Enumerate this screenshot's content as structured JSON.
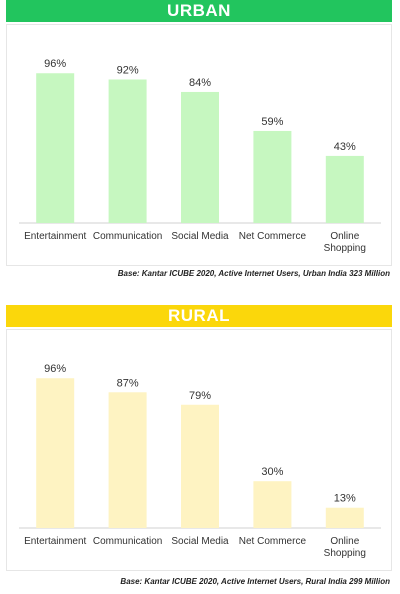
{
  "chart_data": [
    {
      "type": "bar",
      "title": "URBAN",
      "categories": [
        "Entertainment",
        "Communication",
        "Social Media",
        "Net Commerce",
        "Online Shopping"
      ],
      "values": [
        96,
        92,
        84,
        59,
        43
      ],
      "value_labels": [
        "96%",
        "92%",
        "84%",
        "59%",
        "43%"
      ],
      "ylim": [
        0,
        100
      ],
      "grid": false,
      "bar_color": "#c6f7c0",
      "banner_color": "#22c55e",
      "note": "Base: Kantar ICUBE 2020, Active Internet Users, Urban India 323 Million"
    },
    {
      "type": "bar",
      "title": "RURAL",
      "categories": [
        "Entertainment",
        "Communication",
        "Social Media",
        "Net Commerce",
        "Online Shopping"
      ],
      "values": [
        96,
        87,
        79,
        30,
        13
      ],
      "value_labels": [
        "96%",
        "87%",
        "79%",
        "30%",
        "13%"
      ],
      "ylim": [
        0,
        100
      ],
      "grid": false,
      "bar_color": "#fef3c2",
      "banner_color": "#fbd70b",
      "note": "Base: Kantar ICUBE 2020, Active Internet Users, Rural India 299 Million"
    }
  ]
}
